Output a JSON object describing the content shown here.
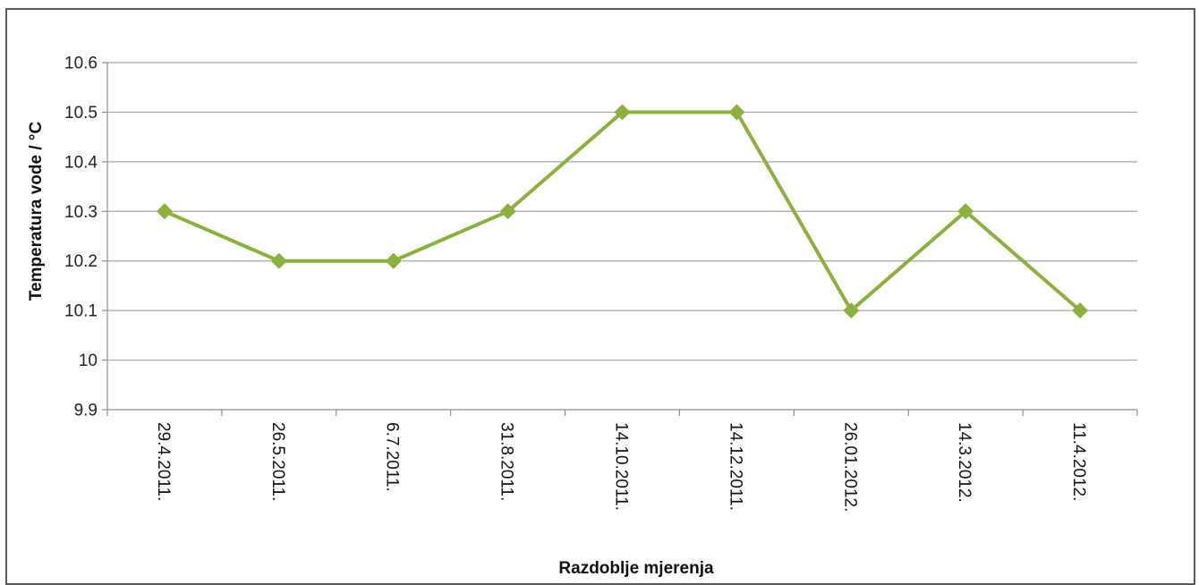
{
  "chart_data": {
    "type": "line",
    "title": "",
    "xlabel": "Razdoblje mjerenja",
    "ylabel": "Temperatura vode / °C",
    "categories": [
      "29.4.2011.",
      "26.5.2011.",
      "6.7.2011.",
      "31.8.2011.",
      "14.10.2011.",
      "14.12.2011.",
      "26.01.2012.",
      "14.3.2012.",
      "11.4.2012."
    ],
    "series": [
      {
        "values": [
          10.3,
          10.2,
          10.2,
          10.3,
          10.5,
          10.5,
          10.1,
          10.3,
          10.1
        ],
        "color": "#8cb040",
        "marker": "diamond"
      }
    ],
    "ylim": [
      9.9,
      10.6
    ],
    "yticks": [
      "9.9",
      "10",
      "10.1",
      "10.2",
      "10.3",
      "10.4",
      "10.5",
      "10.6"
    ],
    "grid": true,
    "legend": "none"
  }
}
